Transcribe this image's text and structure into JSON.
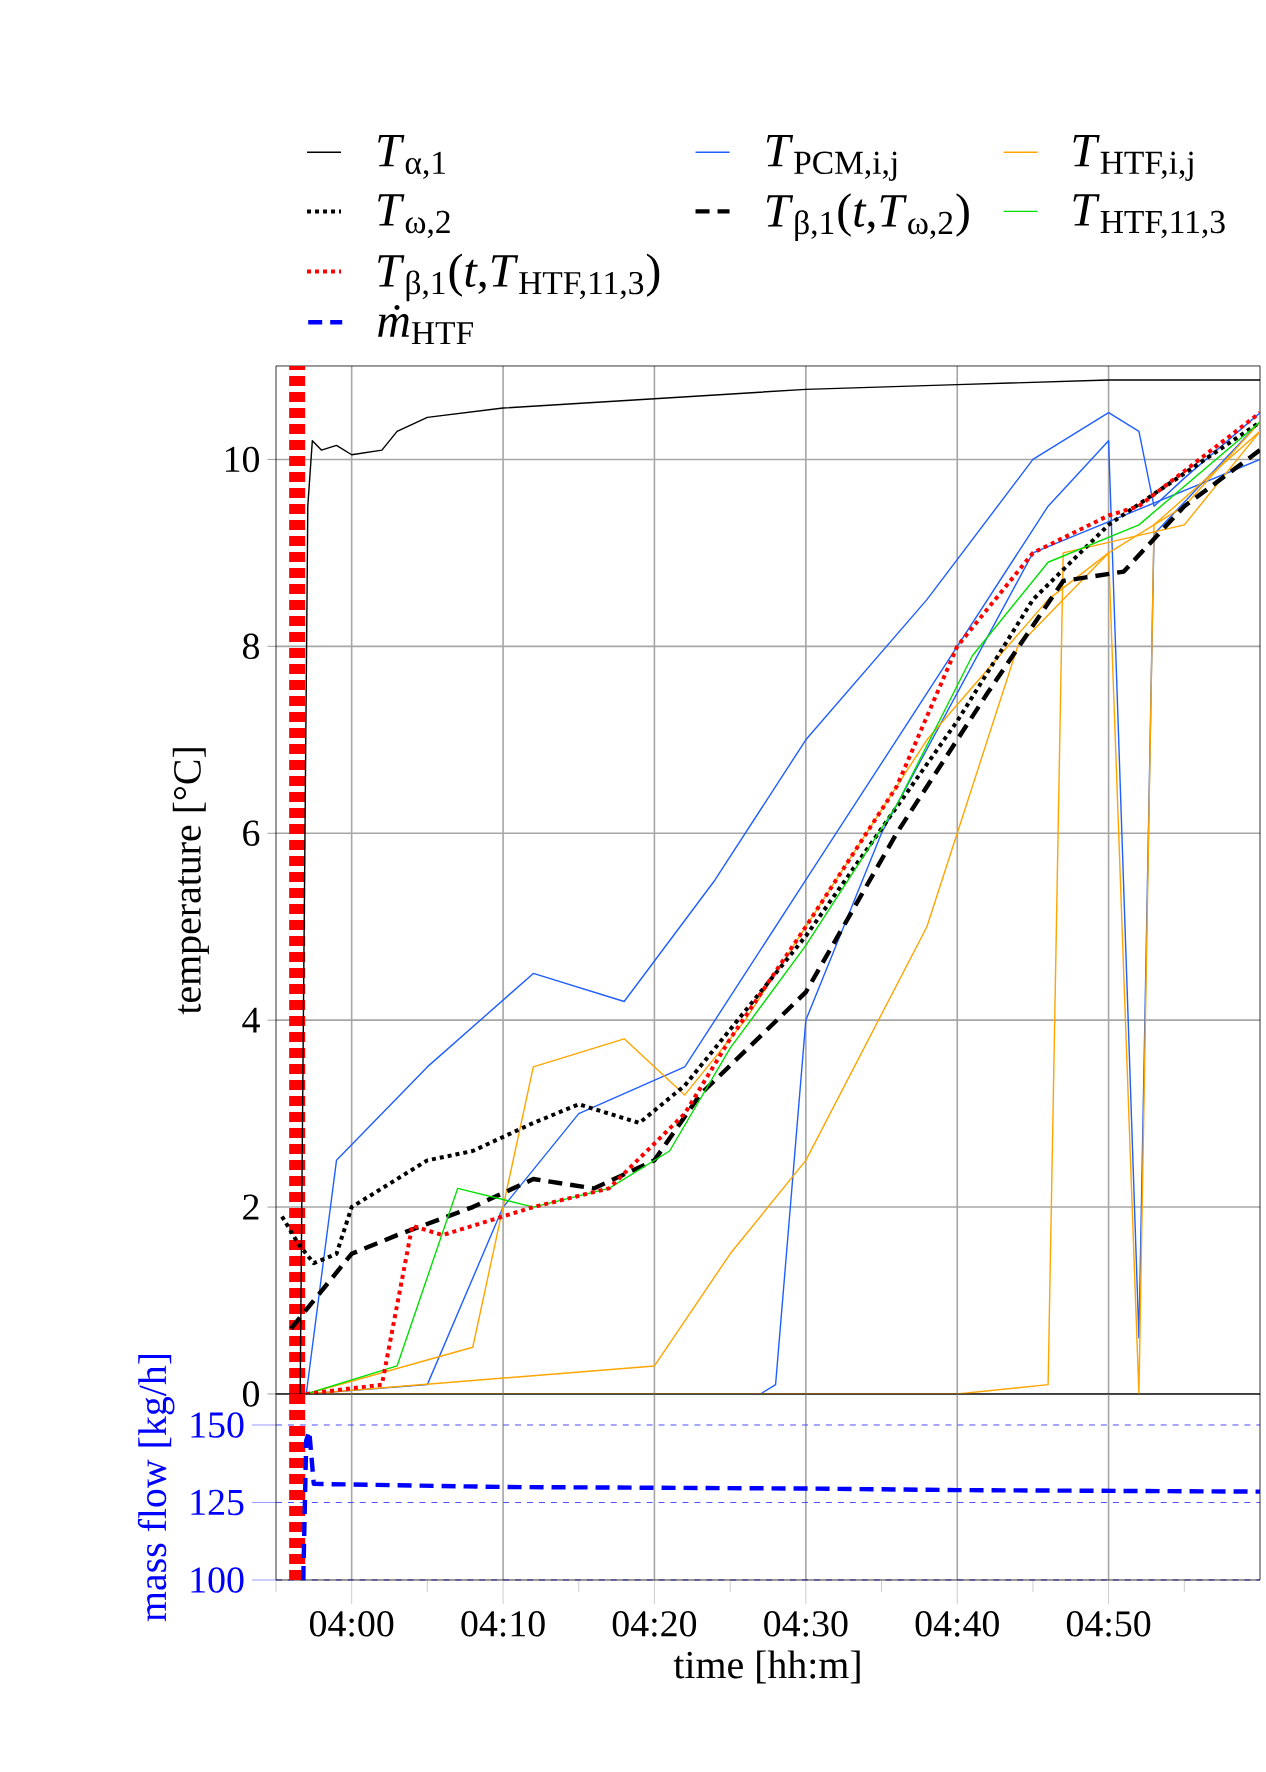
{
  "chart_data": [
    {
      "type": "line",
      "ylabel": "temperature [°C]",
      "xlim": [
        3.9167,
        5.0
      ],
      "ylim": [
        0,
        11
      ],
      "tick_labels": "y",
      "grid": true,
      "legend": "top",
      "xticks": [
        4.0,
        4.1667,
        4.3333,
        4.5,
        4.6667,
        4.8333
      ],
      "yticks": [
        0,
        2,
        4,
        6,
        8,
        10
      ],
      "ref_lines": [
        {
          "axis": "x",
          "value": 3.94,
          "color": "#ff0000",
          "line_style": "dotted"
        }
      ],
      "series": [
        {
          "name": "*T*$_{α,1}$",
          "color": "#000000",
          "line_style": "solid",
          "x": [
            3.9433,
            3.9517,
            3.9567,
            3.9667,
            3.9833,
            4.0,
            4.0333,
            4.05,
            4.0833,
            4.1667,
            4.3333,
            4.5,
            4.6667,
            4.8333,
            5.0
          ],
          "values": [
            0,
            9.5,
            10.2,
            10.1,
            10.15,
            10.05,
            10.1,
            10.3,
            10.45,
            10.55,
            10.65,
            10.75,
            10.8,
            10.85,
            10.85
          ]
        },
        {
          "name": "*T*$_{PCM,i,j}$",
          "color": "#1f5fff",
          "line_style": "solid",
          "x": [
            3.95,
            3.9833,
            4.0833,
            4.2,
            4.3,
            4.4,
            4.5,
            4.6333,
            4.75,
            4.8333,
            4.8667,
            4.8833,
            4.9167,
            5.0
          ],
          "values": [
            0,
            2.5,
            3.5,
            4.5,
            4.2,
            5.5,
            7,
            8.5,
            10.0,
            10.5,
            10.3,
            9.5,
            9.8,
            10.5
          ]
        },
        {
          "color": "#1f5fff",
          "line_style": "solid",
          "x": [
            3.95,
            4.0833,
            4.1667,
            4.25,
            4.3667,
            4.5,
            4.6667,
            4.7667,
            4.8333,
            4.8667,
            4.8833,
            5.0
          ],
          "values": [
            0,
            0.1,
            2,
            3,
            3.5,
            5.5,
            8,
            9.5,
            10.2,
            0.6,
            9.2,
            10.4
          ]
        },
        {
          "color": "#1f5fff",
          "line_style": "solid",
          "x": [
            3.9667,
            4.45,
            4.4667,
            4.5,
            4.5833,
            4.75,
            5.0
          ],
          "values": [
            0,
            0,
            0.1,
            4,
            6,
            9,
            10
          ]
        },
        {
          "name": "*T*$_{HTF,i,j}$",
          "color": "#ffa500",
          "line_style": "solid",
          "x": [
            3.95,
            4.1333,
            4.2,
            4.3,
            4.3667,
            4.4333,
            4.5,
            4.6333,
            4.7667,
            4.8333,
            4.9167,
            5.0
          ],
          "values": [
            0,
            0.5,
            3.5,
            3.8,
            3.2,
            4,
            5,
            7,
            8.5,
            9,
            9.5,
            10.4
          ]
        },
        {
          "color": "#ffa500",
          "line_style": "solid",
          "x": [
            3.95,
            4.3333,
            4.4167,
            4.5,
            4.6333,
            4.7333,
            4.8333,
            4.8667,
            4.8833,
            5.0
          ],
          "values": [
            0,
            0.3,
            1.5,
            2.5,
            5,
            8,
            9,
            0,
            9.3,
            10.3
          ]
        },
        {
          "color": "#ffa500",
          "line_style": "solid",
          "x": [
            3.9667,
            4.6667,
            4.7667,
            4.7833,
            4.9167,
            5.0
          ],
          "values": [
            0,
            0,
            0.1,
            9.0,
            9.3,
            10.3
          ]
        },
        {
          "name": "*T*$_{ω,2}$",
          "color": "#000000",
          "line_style": "dotted",
          "x": [
            3.9233,
            3.9417,
            3.9583,
            3.9833,
            4.0,
            4.0833,
            4.1333,
            4.2,
            4.25,
            4.3167,
            4.3667,
            4.5,
            4.6667,
            4.75,
            4.8333,
            5.0
          ],
          "values": [
            1.9,
            1.6,
            1.4,
            1.5,
            2.0,
            2.5,
            2.6,
            2.9,
            3.1,
            2.9,
            3.3,
            4.9,
            7.2,
            8.5,
            9.3,
            10.4
          ]
        },
        {
          "name": "*T*$_{β,1}$(*t*,*T*$_{ω,2}$)",
          "color": "#000000",
          "line_style": "dashed",
          "x": [
            3.9333,
            4.0,
            4.05,
            4.1333,
            4.2,
            4.2667,
            4.3333,
            4.3833,
            4.5,
            4.6,
            4.7,
            4.7833,
            4.85,
            4.9167,
            5.0
          ],
          "values": [
            0.7,
            1.5,
            1.7,
            2.0,
            2.3,
            2.2,
            2.5,
            3.2,
            4.3,
            6.0,
            7.5,
            8.7,
            8.8,
            9.5,
            10.1
          ]
        },
        {
          "name": "*T*$_{HTF,11,3}$",
          "color": "#00e000",
          "line_style": "solid",
          "x": [
            3.95,
            4.05,
            4.1167,
            4.2,
            4.2833,
            4.35,
            4.4167,
            4.5,
            4.6,
            4.6833,
            4.7667,
            4.8667,
            5.0
          ],
          "values": [
            0,
            0.3,
            2.2,
            2.0,
            2.2,
            2.6,
            3.7,
            4.8,
            6.3,
            7.9,
            8.9,
            9.3,
            10.4
          ]
        },
        {
          "name": "*T*$_{β,1}$(*t*,*T*$_{HTF,11,3}$)",
          "color": "#ff0000",
          "line_style": "dotted",
          "x": [
            3.95,
            4.0333,
            4.0667,
            4.1,
            4.2,
            4.2833,
            4.3667,
            4.4167,
            4.5,
            4.6,
            4.6667,
            4.75,
            4.8333,
            4.8667,
            5.0
          ],
          "values": [
            0,
            0.1,
            1.8,
            1.7,
            2.0,
            2.2,
            3.0,
            3.8,
            5.0,
            6.5,
            8.0,
            9.0,
            9.4,
            9.5,
            10.5
          ]
        }
      ]
    },
    {
      "type": "line",
      "xlabel": "time [hh:m]",
      "ylabel": "mass flow [kg/h]",
      "xlim": [
        3.9167,
        5.0
      ],
      "ylim": [
        100,
        160
      ],
      "grid": true,
      "legend": "top",
      "xticks": [
        {
          "value": 3.9167,
          "label": null
        },
        {
          "value": 4.0,
          "label": "04:00"
        },
        {
          "value": 4.0833,
          "label": null
        },
        {
          "value": 4.1667,
          "label": "04:10"
        },
        {
          "value": 4.25,
          "label": null
        },
        {
          "value": 4.3333,
          "label": "04:20"
        },
        {
          "value": 4.4167,
          "label": null
        },
        {
          "value": 4.5,
          "label": "04:30"
        },
        {
          "value": 4.5833,
          "label": null
        },
        {
          "value": 4.6667,
          "label": "04:40"
        },
        {
          "value": 4.75,
          "label": null
        },
        {
          "value": 4.8333,
          "label": "04:50"
        },
        {
          "value": 4.9167,
          "label": null
        }
      ],
      "yticks": [
        100,
        125,
        150
      ],
      "ref_lines": [
        {
          "axis": "x",
          "value": 3.94,
          "color": "#ff0000",
          "line_style": "dotted"
        }
      ],
      "series": [
        {
          "name": "*ṁ*$_{HTF}$",
          "color": "#0000ff",
          "line_style": "dashed",
          "x": [
            3.9467,
            3.95,
            3.9533,
            3.9583,
            4.1667,
            4.5,
            4.6667,
            5.0
          ],
          "values": [
            100,
            145,
            148,
            131,
            130,
            129.5,
            129,
            128.5
          ]
        }
      ]
    }
  ]
}
